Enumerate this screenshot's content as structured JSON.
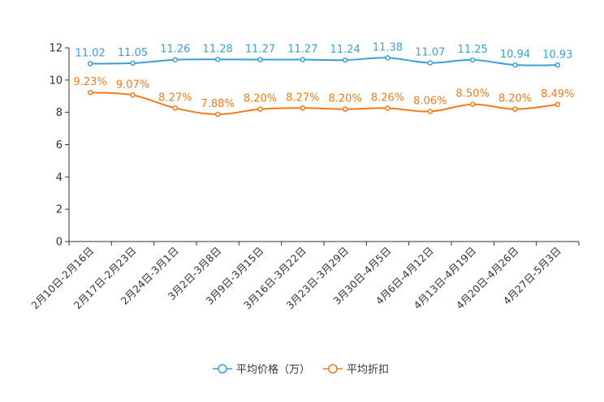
{
  "chart_data": {
    "type": "line",
    "title": "",
    "xlabel": "",
    "ylabel": "",
    "ylim": [
      0,
      12
    ],
    "yticks": [
      0,
      2,
      4,
      6,
      8,
      10,
      12
    ],
    "grid": false,
    "legend_position": "bottom",
    "categories": [
      "2月10日-2月16日",
      "2月17日-2月23日",
      "2月24日-3月1日",
      "3月2日-3月8日",
      "3月9日-3月15日",
      "3月16日-3月22日",
      "3月23日-3月29日",
      "3月30日-4月5日",
      "4月6日-4月12日",
      "4月13日-4月19日",
      "4月20日-4月26日",
      "4月27日-5月3日"
    ],
    "series": [
      {
        "name": "平均价格（万）",
        "color": "#3a9fd3",
        "values": [
          11.02,
          11.05,
          11.26,
          11.28,
          11.27,
          11.27,
          11.24,
          11.38,
          11.07,
          11.25,
          10.94,
          10.93
        ],
        "labels": [
          "11.02",
          "11.05",
          "11.26",
          "11.28",
          "11.27",
          "11.27",
          "11.24",
          "11.38",
          "11.07",
          "11.25",
          "10.94",
          "10.93"
        ]
      },
      {
        "name": "平均折扣",
        "color": "#f27a1a",
        "values": [
          9.23,
          9.07,
          8.27,
          7.88,
          8.2,
          8.27,
          8.2,
          8.26,
          8.06,
          8.5,
          8.2,
          8.49
        ],
        "labels": [
          "9.23%",
          "9.07%",
          "8.27%",
          "7.88%",
          "8.20%",
          "8.27%",
          "8.20%",
          "8.26%",
          "8.06%",
          "8.50%",
          "8.20%",
          "8.49%"
        ]
      }
    ]
  }
}
